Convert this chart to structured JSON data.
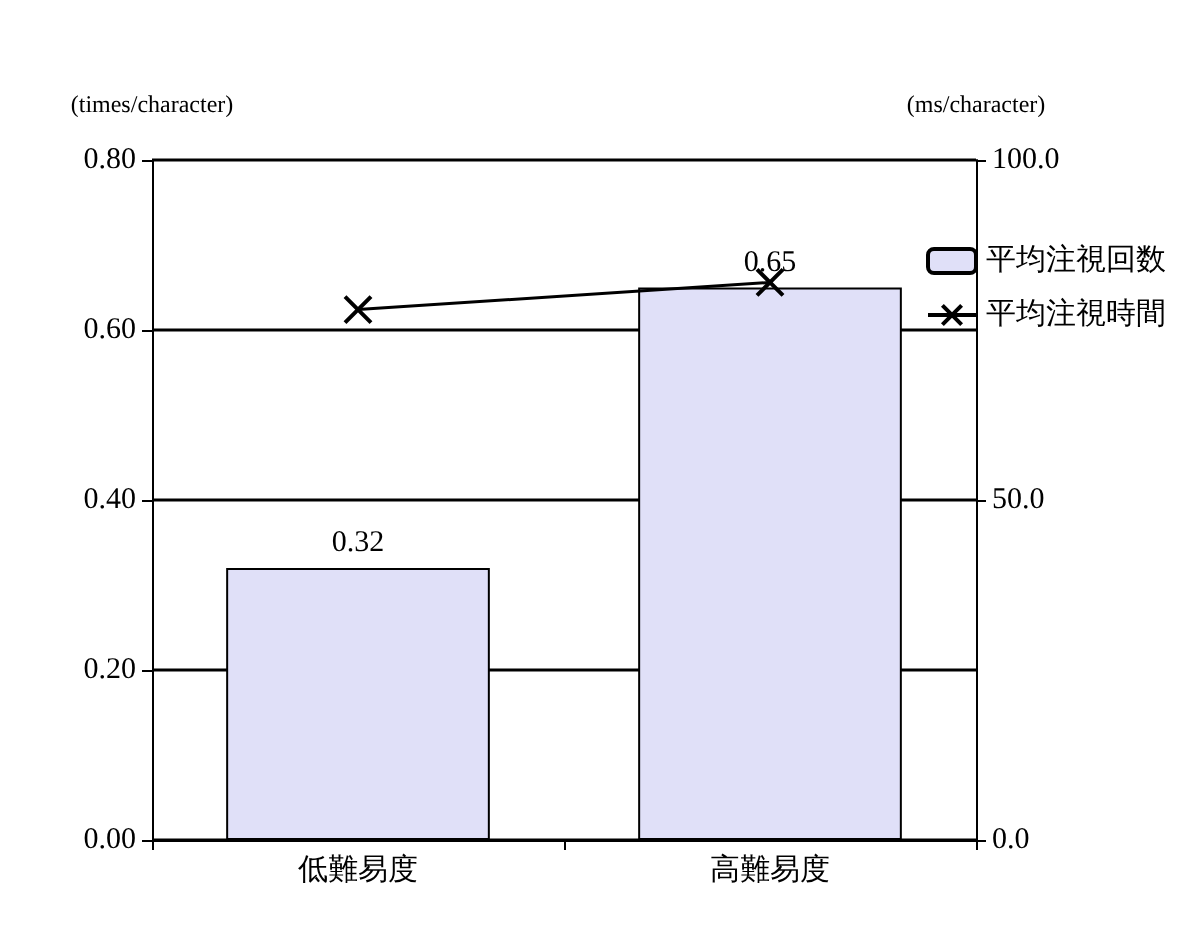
{
  "chart_data": {
    "type": "bar",
    "categories": [
      "低難易度",
      "高難易度"
    ],
    "series": [
      {
        "name": "平均注視回数",
        "color": "#e0e0f8",
        "values": [
          0.32,
          0.65
        ],
        "data_labels": true
      },
      {
        "name": "平均注視時間",
        "type": "line",
        "axis": "y2",
        "color": "#000000",
        "marker": "cross",
        "values": [
          78,
          82
        ]
      }
    ],
    "ylabel": "(times/character)",
    "y2label": "(ms/character)",
    "ylim": [
      0,
      0.8
    ],
    "yticks": [
      {
        "value": 0,
        "label": "0.00"
      },
      {
        "value": 0.2,
        "label": "0.20"
      },
      {
        "value": 0.4,
        "label": "0.40"
      },
      {
        "value": 0.6,
        "label": "0.60"
      },
      {
        "value": 0.8,
        "label": "0.80"
      }
    ],
    "y2lim": [
      0,
      100
    ],
    "y2ticks": [
      {
        "value": 0,
        "label": "0.0"
      },
      {
        "value": 50,
        "label": "50.0"
      },
      {
        "value": 100,
        "label": "100.0"
      }
    ],
    "grid": "y",
    "legend": "right"
  }
}
